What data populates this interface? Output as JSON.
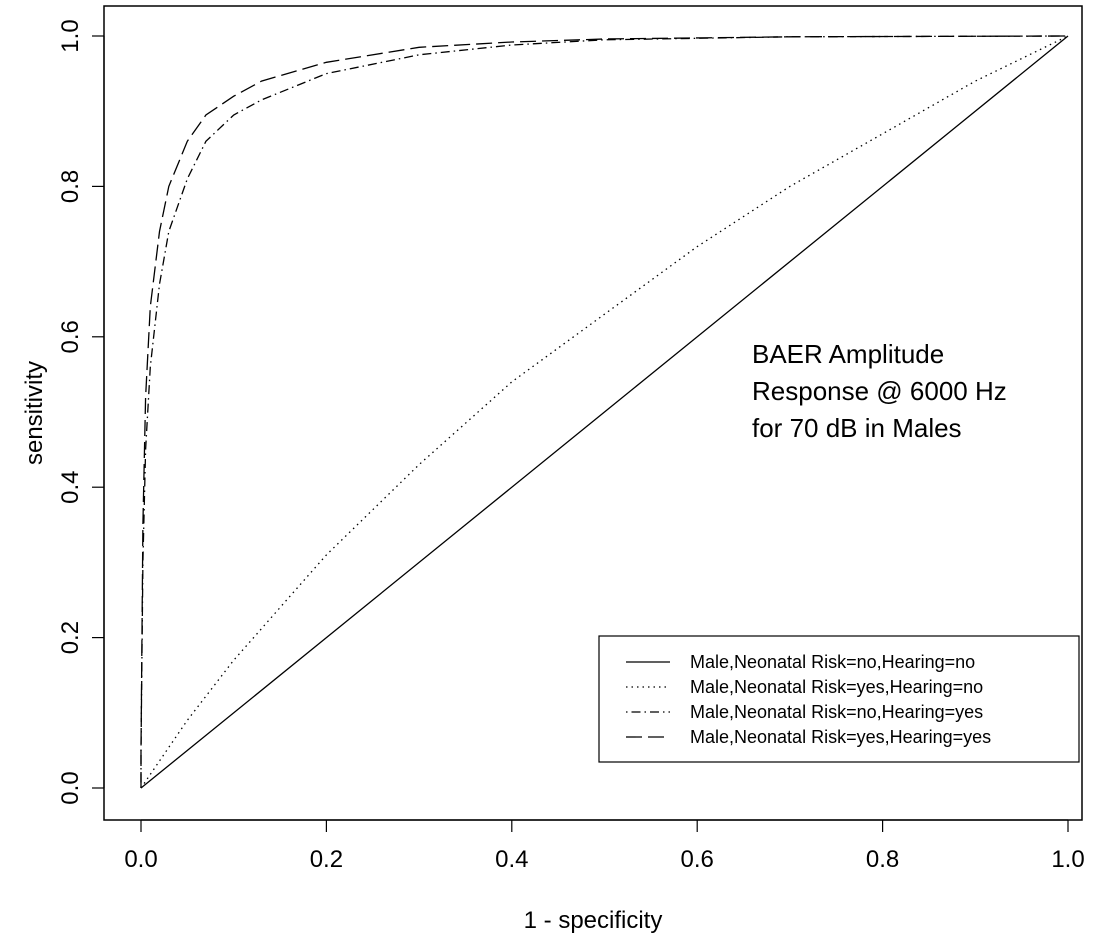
{
  "chart_data": {
    "type": "line",
    "xlabel": "1 - specificity",
    "ylabel": "sensitivity",
    "xlim": [
      0,
      1
    ],
    "ylim": [
      0,
      1
    ],
    "x_ticks": [
      "0.0",
      "0.2",
      "0.4",
      "0.6",
      "0.8",
      "1.0"
    ],
    "y_ticks": [
      "0.0",
      "0.2",
      "0.4",
      "0.6",
      "0.8",
      "1.0"
    ],
    "annotation": [
      "BAER Amplitude",
      "Response @ 6000 Hz",
      "for 70 dB in Males"
    ],
    "grid": false,
    "legend_position": "bottom-right",
    "series": [
      {
        "name": "Male,Neonatal Risk=no,Hearing=no",
        "linestyle": "solid",
        "x": [
          0.0,
          0.25,
          0.5,
          0.75,
          1.0
        ],
        "y": [
          0.0,
          0.25,
          0.5,
          0.75,
          1.0
        ]
      },
      {
        "name": "Male,Neonatal Risk=yes,Hearing=no",
        "linestyle": "dotted",
        "x": [
          0.0,
          0.05,
          0.1,
          0.2,
          0.3,
          0.4,
          0.5,
          0.6,
          0.7,
          0.8,
          0.9,
          1.0
        ],
        "y": [
          0.0,
          0.09,
          0.17,
          0.31,
          0.43,
          0.54,
          0.63,
          0.72,
          0.8,
          0.87,
          0.94,
          1.0
        ]
      },
      {
        "name": "Male,Neonatal Risk=no,Hearing=yes",
        "linestyle": "dotdash",
        "x": [
          0.0,
          0.0,
          0.002,
          0.005,
          0.01,
          0.02,
          0.03,
          0.05,
          0.07,
          0.1,
          0.13,
          0.2,
          0.3,
          0.4,
          0.5,
          0.7,
          1.0
        ],
        "y": [
          0.0,
          0.05,
          0.3,
          0.45,
          0.56,
          0.67,
          0.74,
          0.81,
          0.86,
          0.895,
          0.915,
          0.95,
          0.975,
          0.988,
          0.995,
          0.999,
          1.0
        ]
      },
      {
        "name": "Male,Neonatal Risk=yes,Hearing=yes",
        "linestyle": "longdash",
        "x": [
          0.0,
          0.0,
          0.002,
          0.005,
          0.01,
          0.02,
          0.03,
          0.05,
          0.07,
          0.1,
          0.13,
          0.2,
          0.3,
          0.4,
          0.5,
          0.7,
          1.0
        ],
        "y": [
          0.0,
          0.05,
          0.35,
          0.52,
          0.64,
          0.74,
          0.8,
          0.86,
          0.895,
          0.92,
          0.94,
          0.965,
          0.985,
          0.992,
          0.996,
          0.999,
          1.0
        ]
      }
    ]
  }
}
